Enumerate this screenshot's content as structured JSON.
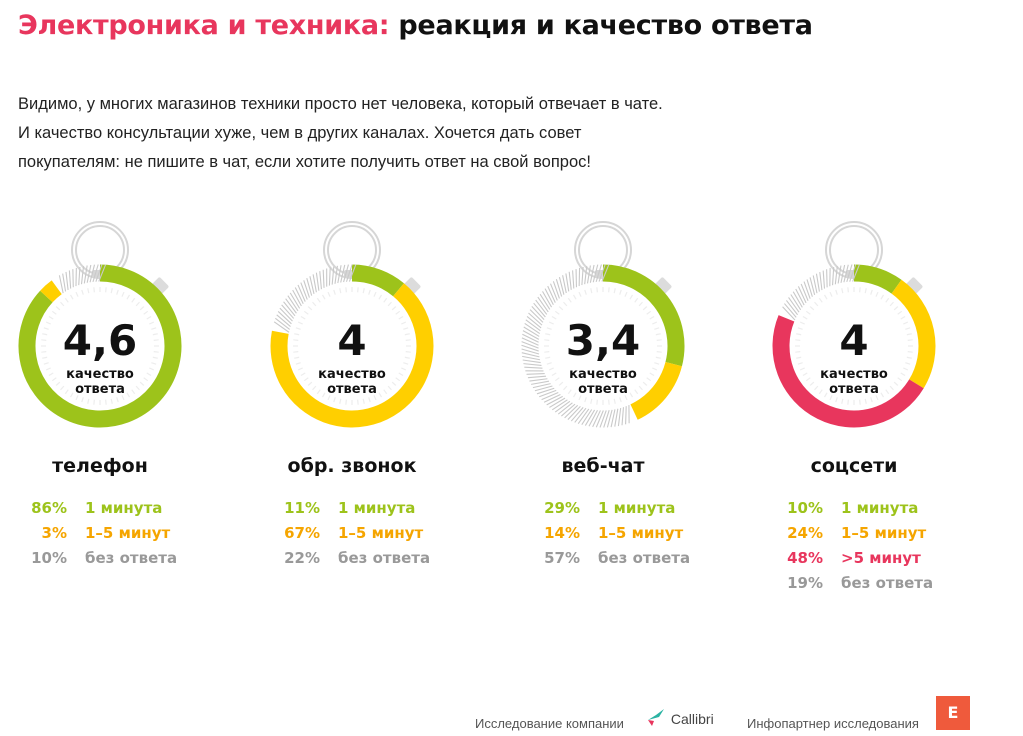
{
  "header": {
    "title_accent": "Электроника и техника:",
    "title_rest": "реакция и качество ответа"
  },
  "intro": {
    "lines": [
      "Видимо, у многих магазинов техники просто нет человека, который отвечает в чате.",
      "И качество консультации хуже, чем в других каналах. Хочется дать совет",
      "покупателям: не пишите в чат, если хотите получить ответ на свой вопрос!"
    ]
  },
  "colors": {
    "green": "#9dc31b",
    "yellow": "#ffcf00",
    "red": "#e8365d",
    "grey": "#999999",
    "accent": "#e8365d"
  },
  "chart_data": {
    "type": "pie",
    "title": "реакция и качество ответа",
    "channels": [
      {
        "name": "телефон",
        "quality": "4,6",
        "quality_label": "качество ответа",
        "stats": [
          {
            "pct": "86%",
            "label": "1 минута",
            "value": 86,
            "color": "green"
          },
          {
            "pct": "3%",
            "label": "1–5 минут",
            "value": 3,
            "color": "yellow"
          },
          {
            "pct": "10%",
            "label": "без ответа",
            "value": 10,
            "color": "grey"
          }
        ]
      },
      {
        "name": "обр. звонок",
        "quality": "4",
        "quality_label": "качество ответа",
        "stats": [
          {
            "pct": "11%",
            "label": "1 минута",
            "value": 11,
            "color": "green"
          },
          {
            "pct": "67%",
            "label": "1–5 минут",
            "value": 67,
            "color": "yellow"
          },
          {
            "pct": "22%",
            "label": "без ответа",
            "value": 22,
            "color": "grey"
          }
        ]
      },
      {
        "name": "веб-чат",
        "quality": "3,4",
        "quality_label": "качество ответа",
        "stats": [
          {
            "pct": "29%",
            "label": "1 минута",
            "value": 29,
            "color": "green"
          },
          {
            "pct": "14%",
            "label": "1–5 минут",
            "value": 14,
            "color": "yellow"
          },
          {
            "pct": "57%",
            "label": "без ответа",
            "value": 57,
            "color": "grey"
          }
        ]
      },
      {
        "name": "соцсети",
        "quality": "4",
        "quality_label": "качество ответа",
        "stats": [
          {
            "pct": "10%",
            "label": "1 минута",
            "value": 10,
            "color": "green"
          },
          {
            "pct": "24%",
            "label": "1–5 минут",
            "value": 24,
            "color": "yellow"
          },
          {
            "pct": "48%",
            "label": ">5 минут",
            "value": 48,
            "color": "red"
          },
          {
            "pct": "19%",
            "label": "без ответа",
            "value": 19,
            "color": "grey"
          }
        ]
      }
    ]
  },
  "footer": {
    "research_by": "Исследование компании",
    "brand": "Callibri",
    "partner": "Инфопартнер исследования",
    "partner_logo_letter": "E"
  }
}
